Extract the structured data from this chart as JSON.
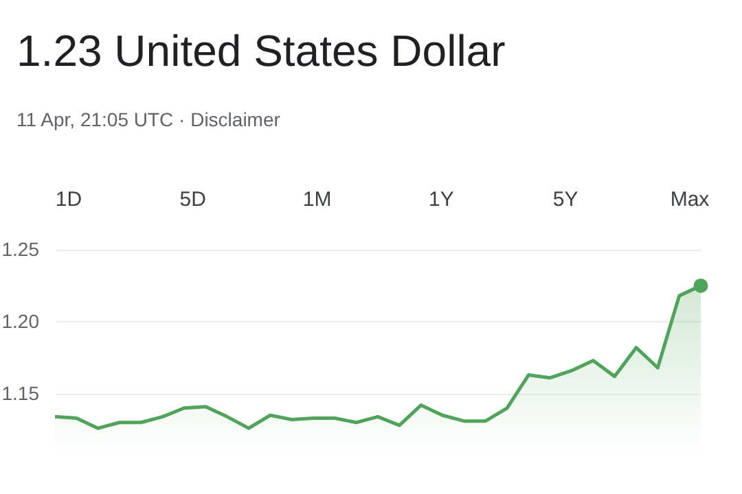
{
  "chart_data": {
    "type": "area",
    "title": "1.23 United States Dollar",
    "subtitle": "11 Apr, 21:05 UTC · Disclaimer",
    "annotations": [
      "1D",
      "5D",
      "1M",
      "1Y",
      "5Y",
      "Max"
    ],
    "categories": [
      null,
      null,
      null,
      null,
      null,
      null,
      null,
      null,
      null,
      null,
      null,
      null,
      null,
      null,
      null,
      null,
      null,
      null,
      null,
      null,
      null,
      null,
      null,
      null,
      null,
      null,
      null,
      null,
      null,
      null,
      null
    ],
    "series": [
      {
        "color": "#4fa35a",
        "values": [
          1.134,
          1.133,
          1.126,
          1.13,
          1.13,
          1.134,
          1.14,
          1.141,
          1.134,
          1.126,
          1.135,
          1.132,
          1.133,
          1.133,
          1.13,
          1.134,
          1.128,
          1.142,
          1.135,
          1.131,
          1.131,
          1.14,
          1.163,
          1.161,
          1.166,
          1.173,
          1.162,
          1.182,
          1.168,
          1.218,
          1.225
        ]
      },
      {
        "type": "scatter",
        "color": "#4fa35a",
        "values": [
          null,
          null,
          null,
          null,
          null,
          null,
          null,
          null,
          null,
          null,
          null,
          null,
          null,
          null,
          null,
          null,
          null,
          null,
          null,
          null,
          null,
          null,
          null,
          null,
          null,
          null,
          null,
          null,
          null,
          null,
          1.225
        ]
      }
    ],
    "ylim": [
      1.107,
      1.25
    ],
    "yticks": [
      {
        "value": 1.15,
        "label": "1.15"
      },
      {
        "value": 1.2,
        "label": "1.20"
      },
      {
        "value": 1.25,
        "label": "1.25"
      }
    ],
    "grid": "y",
    "tick_labels": "y"
  }
}
